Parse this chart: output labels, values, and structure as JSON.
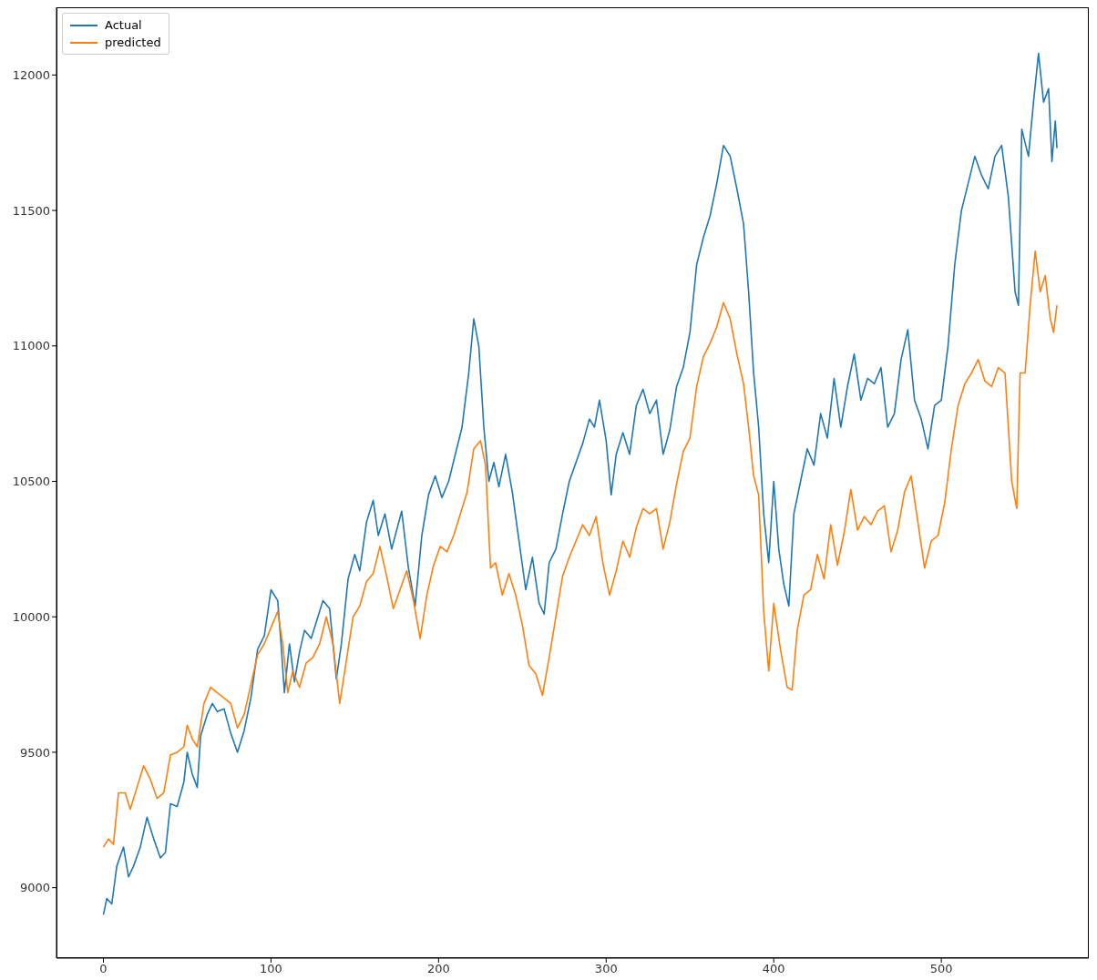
{
  "chart_data": {
    "type": "line",
    "legend": "top left",
    "grid": false,
    "marker": "none",
    "line_style": "solid",
    "xlim": [
      -28,
      588
    ],
    "ylim": [
      8740,
      12250
    ],
    "xticks": [
      0,
      100,
      200,
      300,
      400,
      500
    ],
    "yticks": [
      9000,
      9500,
      10000,
      10500,
      11000,
      11500,
      12000
    ],
    "series": [
      {
        "name": "Actual",
        "color": "#1f77b4",
        "x": [
          0,
          2,
          5,
          8,
          12,
          15,
          18,
          22,
          26,
          30,
          34,
          37,
          40,
          44,
          48,
          50,
          53,
          56,
          58,
          62,
          65,
          68,
          72,
          76,
          80,
          84,
          88,
          92,
          96,
          100,
          104,
          106,
          108,
          111,
          114,
          117,
          120,
          124,
          128,
          131,
          135,
          139,
          142,
          146,
          150,
          153,
          157,
          161,
          164,
          168,
          172,
          175,
          178,
          182,
          186,
          190,
          194,
          198,
          202,
          206,
          210,
          214,
          218,
          221,
          224,
          227,
          230,
          233,
          236,
          240,
          244,
          248,
          252,
          256,
          260,
          263,
          266,
          270,
          274,
          278,
          282,
          286,
          290,
          293,
          296,
          300,
          303,
          306,
          310,
          314,
          318,
          322,
          326,
          330,
          334,
          338,
          342,
          346,
          350,
          354,
          358,
          362,
          366,
          370,
          374,
          378,
          382,
          385,
          388,
          391,
          394,
          397,
          400,
          403,
          406,
          409,
          412,
          416,
          420,
          424,
          428,
          432,
          436,
          440,
          444,
          448,
          452,
          456,
          460,
          464,
          468,
          472,
          476,
          480,
          484,
          488,
          492,
          496,
          500,
          504,
          508,
          512,
          516,
          520,
          524,
          528,
          532,
          536,
          540,
          544,
          546,
          548,
          552,
          555,
          558,
          561,
          564,
          566,
          568,
          569
        ],
        "values": [
          8900,
          8960,
          8940,
          9080,
          9150,
          9040,
          9080,
          9150,
          9260,
          9180,
          9110,
          9130,
          9310,
          9300,
          9390,
          9500,
          9420,
          9370,
          9560,
          9640,
          9680,
          9650,
          9660,
          9570,
          9500,
          9580,
          9700,
          9880,
          9930,
          10100,
          10060,
          9900,
          9720,
          9900,
          9760,
          9870,
          9950,
          9920,
          10000,
          10060,
          10030,
          9770,
          9900,
          10140,
          10230,
          10170,
          10350,
          10430,
          10300,
          10380,
          10250,
          10320,
          10390,
          10180,
          10040,
          10300,
          10450,
          10520,
          10440,
          10500,
          10600,
          10700,
          10900,
          11100,
          11000,
          10700,
          10500,
          10570,
          10480,
          10600,
          10460,
          10280,
          10100,
          10220,
          10050,
          10010,
          10200,
          10250,
          10380,
          10500,
          10570,
          10640,
          10730,
          10700,
          10800,
          10650,
          10450,
          10600,
          10680,
          10600,
          10780,
          10840,
          10750,
          10800,
          10600,
          10690,
          10850,
          10920,
          11050,
          11300,
          11400,
          11480,
          11600,
          11740,
          11700,
          11580,
          11450,
          11200,
          10900,
          10700,
          10380,
          10200,
          10500,
          10250,
          10120,
          10040,
          10380,
          10500,
          10620,
          10560,
          10750,
          10660,
          10880,
          10700,
          10850,
          10970,
          10800,
          10880,
          10860,
          10920,
          10700,
          10750,
          10950,
          11060,
          10800,
          10730,
          10620,
          10780,
          10800,
          11000,
          11300,
          11500,
          11600,
          11700,
          11630,
          11580,
          11700,
          11740,
          11550,
          11200,
          11150,
          11800,
          11700,
          11900,
          12080,
          11900,
          11950,
          11680,
          11830,
          11730
        ]
      },
      {
        "name": "predicted",
        "color": "#ff7f0e",
        "x": [
          0,
          3,
          6,
          9,
          13,
          16,
          20,
          24,
          28,
          32,
          36,
          40,
          44,
          48,
          50,
          53,
          56,
          60,
          64,
          68,
          72,
          76,
          80,
          84,
          88,
          92,
          96,
          100,
          104,
          107,
          110,
          113,
          117,
          121,
          125,
          129,
          133,
          137,
          141,
          145,
          149,
          153,
          157,
          161,
          165,
          169,
          173,
          177,
          181,
          185,
          189,
          193,
          197,
          201,
          205,
          209,
          213,
          217,
          221,
          225,
          228,
          231,
          234,
          238,
          242,
          246,
          250,
          254,
          258,
          262,
          266,
          270,
          274,
          278,
          282,
          286,
          290,
          294,
          298,
          302,
          306,
          310,
          314,
          318,
          322,
          326,
          330,
          334,
          338,
          342,
          346,
          350,
          354,
          358,
          362,
          366,
          370,
          374,
          378,
          382,
          385,
          388,
          391,
          394,
          397,
          400,
          404,
          408,
          411,
          414,
          418,
          422,
          426,
          430,
          434,
          438,
          442,
          446,
          450,
          454,
          458,
          462,
          466,
          470,
          474,
          478,
          482,
          486,
          490,
          494,
          498,
          502,
          506,
          510,
          514,
          518,
          522,
          526,
          530,
          534,
          538,
          542,
          545,
          547,
          550,
          553,
          556,
          559,
          562,
          565,
          567,
          569
        ],
        "values": [
          9150,
          9180,
          9160,
          9350,
          9350,
          9290,
          9370,
          9450,
          9400,
          9330,
          9350,
          9490,
          9500,
          9520,
          9600,
          9550,
          9520,
          9680,
          9740,
          9720,
          9700,
          9680,
          9590,
          9640,
          9750,
          9860,
          9900,
          9960,
          10020,
          9900,
          9720,
          9800,
          9740,
          9830,
          9850,
          9900,
          10000,
          9900,
          9680,
          9840,
          10000,
          10040,
          10130,
          10160,
          10260,
          10150,
          10030,
          10100,
          10170,
          10060,
          9920,
          10080,
          10190,
          10260,
          10240,
          10300,
          10380,
          10460,
          10620,
          10650,
          10560,
          10180,
          10200,
          10080,
          10160,
          10080,
          9970,
          9820,
          9790,
          9710,
          9850,
          10000,
          10150,
          10220,
          10280,
          10340,
          10300,
          10370,
          10200,
          10080,
          10170,
          10280,
          10220,
          10330,
          10400,
          10380,
          10400,
          10250,
          10350,
          10490,
          10610,
          10660,
          10850,
          10960,
          11010,
          11070,
          11160,
          11100,
          10970,
          10860,
          10700,
          10520,
          10450,
          10020,
          9800,
          10050,
          9880,
          9740,
          9730,
          9950,
          10080,
          10100,
          10230,
          10140,
          10340,
          10190,
          10310,
          10470,
          10320,
          10370,
          10340,
          10390,
          10410,
          10240,
          10320,
          10460,
          10520,
          10350,
          10180,
          10280,
          10300,
          10420,
          10620,
          10780,
          10860,
          10900,
          10950,
          10870,
          10850,
          10920,
          10900,
          10500,
          10400,
          10900,
          10900,
          11150,
          11350,
          11200,
          11260,
          11100,
          11050,
          11150
        ]
      }
    ]
  }
}
